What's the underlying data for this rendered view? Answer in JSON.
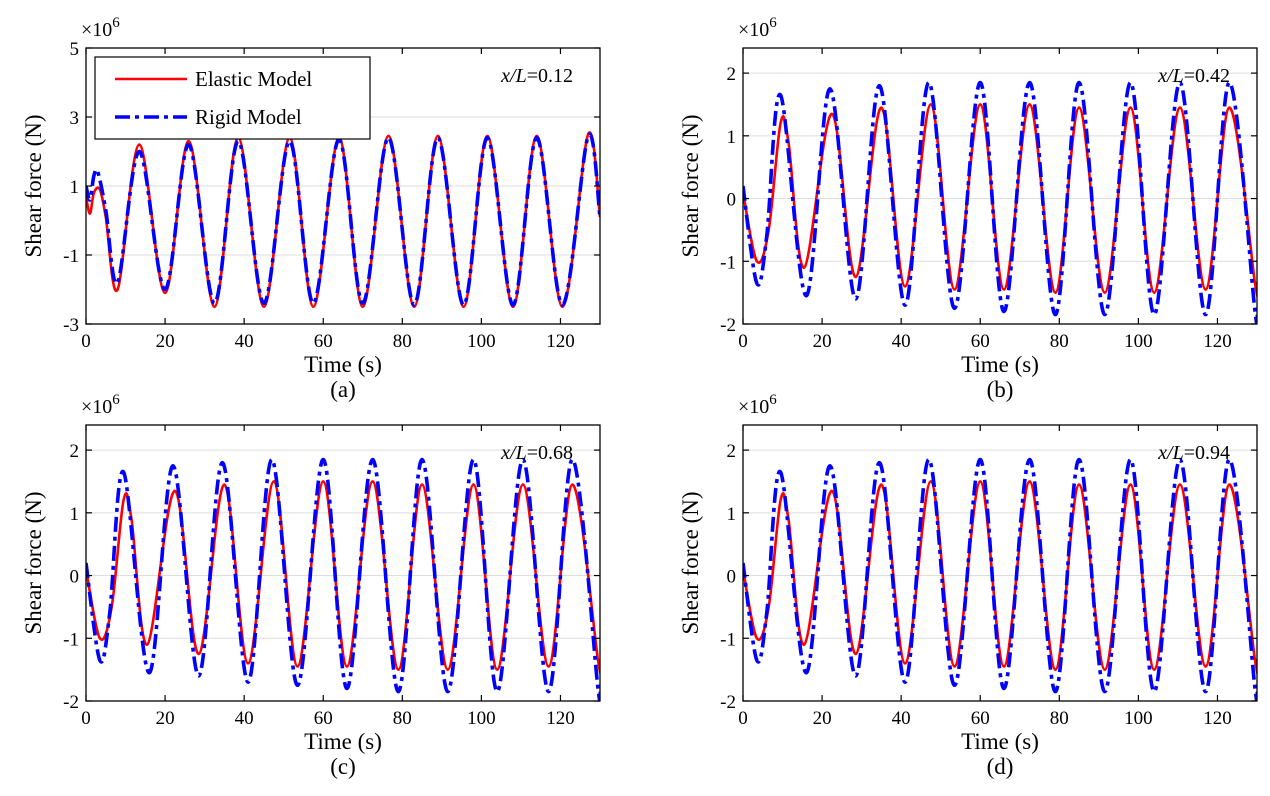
{
  "chart_data": [
    {
      "type": "line",
      "panel_label": "(a)",
      "annotation": "x/L=0.12",
      "annotation_var": "x/L",
      "annotation_val": "=0.12",
      "xlabel": "Time (s)",
      "ylabel": "Shear force (N)",
      "y_multiplier_base": "×10",
      "y_multiplier_exp": "6",
      "xlim": [
        0,
        130
      ],
      "ylim": [
        -3,
        5
      ],
      "x_ticks": [
        0,
        20,
        40,
        60,
        80,
        100,
        120
      ],
      "y_ticks": [
        -3,
        -1,
        1,
        3,
        5
      ],
      "grid": "horizontal",
      "legend": {
        "placement": "top-left",
        "entries": [
          "Elastic Model",
          "Rigid Model"
        ]
      },
      "series": [
        {
          "name": "Elastic Model",
          "color": "#ff0000",
          "style": "solid",
          "x": [
            0,
            1,
            2,
            3.5,
            5,
            8,
            13.5,
            20,
            26,
            32.5,
            38.5,
            45,
            51.5,
            57.5,
            64,
            70,
            76.5,
            83,
            89,
            95.5,
            101.5,
            108,
            114,
            120.5,
            127,
            130
          ],
          "y": [
            0.7,
            0.2,
            0.8,
            0.9,
            0.1,
            -2.0,
            2.2,
            -2.1,
            2.3,
            -2.5,
            2.4,
            -2.5,
            2.4,
            -2.5,
            2.4,
            -2.5,
            2.45,
            -2.5,
            2.45,
            -2.5,
            2.45,
            -2.5,
            2.45,
            -2.5,
            2.5,
            0.1
          ]
        },
        {
          "name": "Rigid Model",
          "color": "#0000ff",
          "style": "dashdot",
          "x": [
            0,
            1,
            2,
            3,
            5,
            8,
            13.5,
            20,
            26,
            32.5,
            38.5,
            45,
            51.5,
            57.5,
            64,
            70,
            76.5,
            83,
            89,
            95.5,
            101.5,
            108,
            114,
            120.5,
            127,
            130
          ],
          "y": [
            1.0,
            0.6,
            1.3,
            1.4,
            0.3,
            -1.8,
            2.0,
            -2.0,
            2.2,
            -2.4,
            2.3,
            -2.4,
            2.3,
            -2.4,
            2.35,
            -2.4,
            2.4,
            -2.45,
            2.4,
            -2.45,
            2.4,
            -2.45,
            2.4,
            -2.45,
            2.45,
            0.1
          ]
        }
      ]
    },
    {
      "type": "line",
      "panel_label": "(b)",
      "annotation": "x/L=0.42",
      "annotation_var": "x/L",
      "annotation_val": "=0.42",
      "xlabel": "Time (s)",
      "ylabel": "Shear force (N)",
      "y_multiplier_base": "×10",
      "y_multiplier_exp": "6",
      "xlim": [
        0,
        130
      ],
      "ylim": [
        -2,
        2.4
      ],
      "x_ticks": [
        0,
        20,
        40,
        60,
        80,
        100,
        120
      ],
      "y_ticks": [
        -2,
        -1,
        0,
        1,
        2
      ],
      "grid": "horizontal",
      "series": [
        {
          "name": "Elastic Model",
          "color": "#ff0000",
          "style": "solid",
          "x": [
            0,
            3.5,
            6.5,
            9.5,
            11.5,
            15.5,
            22.5,
            28.5,
            35,
            41,
            47.5,
            53.5,
            60,
            66,
            72.5,
            79,
            85,
            91.5,
            98,
            104,
            110.5,
            117,
            123,
            129.5,
            130
          ],
          "y": [
            0.1,
            -1.0,
            -0.5,
            1.2,
            0.9,
            -1.1,
            1.35,
            -1.25,
            1.45,
            -1.4,
            1.5,
            -1.45,
            1.5,
            -1.45,
            1.5,
            -1.5,
            1.45,
            -1.5,
            1.45,
            -1.5,
            1.45,
            -1.45,
            1.45,
            -1.35,
            -1.35
          ]
        },
        {
          "name": "Rigid Model",
          "color": "#0000ff",
          "style": "dashdot",
          "x": [
            0,
            3.5,
            6,
            9.5,
            16,
            22,
            28.5,
            34.5,
            41,
            47,
            53.5,
            60,
            66,
            72.5,
            79,
            85,
            91.5,
            98,
            104,
            110.5,
            117,
            123,
            129.5,
            130
          ],
          "y": [
            0.2,
            -1.35,
            -0.6,
            1.65,
            -1.55,
            1.75,
            -1.6,
            1.8,
            -1.7,
            1.85,
            -1.75,
            1.85,
            -1.8,
            1.85,
            -1.85,
            1.85,
            -1.85,
            1.85,
            -1.85,
            1.85,
            -1.85,
            1.85,
            -1.8,
            -1.75
          ]
        }
      ]
    },
    {
      "type": "line",
      "panel_label": "(c)",
      "annotation": "x/L=0.68",
      "annotation_var": "x/L",
      "annotation_val": "=0.68",
      "xlabel": "Time (s)",
      "ylabel": "Shear force (N)",
      "y_multiplier_base": "×10",
      "y_multiplier_exp": "6",
      "xlim": [
        0,
        130
      ],
      "ylim": [
        -2,
        2.4
      ],
      "x_ticks": [
        0,
        20,
        40,
        60,
        80,
        100,
        120
      ],
      "y_ticks": [
        -2,
        -1,
        0,
        1,
        2
      ],
      "grid": "horizontal",
      "series": [
        {
          "name": "Elastic Model",
          "color": "#ff0000",
          "style": "solid",
          "x": [
            0,
            3.5,
            6.5,
            9.5,
            11.5,
            15.5,
            22.5,
            28.5,
            35,
            41,
            47.5,
            53.5,
            60,
            66,
            72.5,
            79,
            85,
            91.5,
            98,
            104,
            110.5,
            117,
            123,
            129.5,
            130
          ],
          "y": [
            0.1,
            -1.0,
            -0.5,
            1.2,
            0.9,
            -1.1,
            1.35,
            -1.25,
            1.45,
            -1.4,
            1.5,
            -1.45,
            1.5,
            -1.45,
            1.5,
            -1.5,
            1.45,
            -1.5,
            1.45,
            -1.5,
            1.45,
            -1.45,
            1.45,
            -1.35,
            -1.35
          ]
        },
        {
          "name": "Rigid Model",
          "color": "#0000ff",
          "style": "dashdot",
          "x": [
            0,
            3.5,
            6,
            9.5,
            16,
            22,
            28.5,
            34.5,
            41,
            47,
            53.5,
            60,
            66,
            72.5,
            79,
            85,
            91.5,
            98,
            104,
            110.5,
            117,
            123,
            129.5,
            130
          ],
          "y": [
            0.2,
            -1.35,
            -0.6,
            1.65,
            -1.55,
            1.75,
            -1.6,
            1.8,
            -1.7,
            1.85,
            -1.75,
            1.85,
            -1.8,
            1.85,
            -1.85,
            1.85,
            -1.85,
            1.85,
            -1.85,
            1.85,
            -1.85,
            1.85,
            -1.8,
            -1.75
          ]
        }
      ]
    },
    {
      "type": "line",
      "panel_label": "(d)",
      "annotation": "x/L=0.94",
      "annotation_var": "x/L",
      "annotation_val": "=0.94",
      "xlabel": "Time (s)",
      "ylabel": "Shear force (N)",
      "y_multiplier_base": "×10",
      "y_multiplier_exp": "6",
      "xlim": [
        0,
        130
      ],
      "ylim": [
        -2,
        2.4
      ],
      "x_ticks": [
        0,
        20,
        40,
        60,
        80,
        100,
        120
      ],
      "y_ticks": [
        -2,
        -1,
        0,
        1,
        2
      ],
      "grid": "horizontal",
      "series": [
        {
          "name": "Elastic Model",
          "color": "#ff0000",
          "style": "solid",
          "x": [
            0,
            3.5,
            6.5,
            9.5,
            11.5,
            15.5,
            22.5,
            28.5,
            35,
            41,
            47.5,
            53.5,
            60,
            66,
            72.5,
            79,
            85,
            91.5,
            98,
            104,
            110.5,
            117,
            123,
            129.5,
            130
          ],
          "y": [
            0.1,
            -1.0,
            -0.5,
            1.2,
            0.9,
            -1.1,
            1.35,
            -1.25,
            1.45,
            -1.4,
            1.5,
            -1.45,
            1.5,
            -1.45,
            1.5,
            -1.5,
            1.45,
            -1.5,
            1.45,
            -1.5,
            1.45,
            -1.45,
            1.45,
            -1.35,
            -1.35
          ]
        },
        {
          "name": "Rigid Model",
          "color": "#0000ff",
          "style": "dashdot",
          "x": [
            0,
            3.5,
            6,
            9.5,
            16,
            22,
            28.5,
            34.5,
            41,
            47,
            53.5,
            60,
            66,
            72.5,
            79,
            85,
            91.5,
            98,
            104,
            110.5,
            117,
            123,
            129.5,
            130
          ],
          "y": [
            0.2,
            -1.35,
            -0.6,
            1.65,
            -1.55,
            1.75,
            -1.6,
            1.8,
            -1.7,
            1.85,
            -1.75,
            1.85,
            -1.8,
            1.85,
            -1.85,
            1.85,
            -1.85,
            1.85,
            -1.85,
            1.85,
            -1.85,
            1.85,
            -1.8,
            -1.75
          ]
        }
      ]
    }
  ]
}
